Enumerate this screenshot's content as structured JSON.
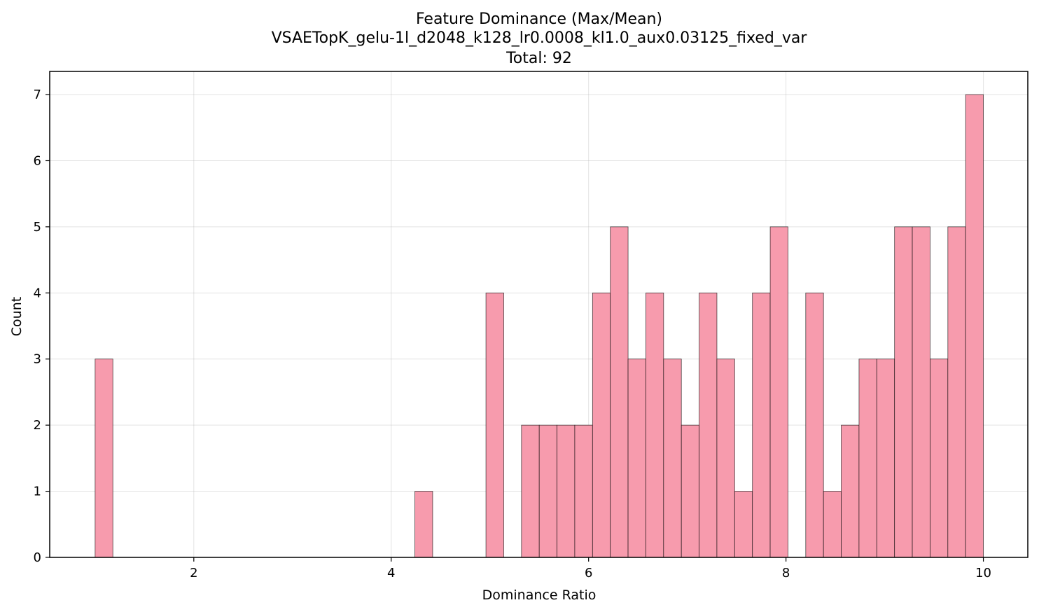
{
  "chart_data": {
    "type": "bar",
    "title_lines": [
      "Feature Dominance (Max/Mean)",
      "VSAETopK_gelu-1l_d2048_k128_lr0.0008_kl1.0_aux0.03125_fixed_var",
      "Total: 92"
    ],
    "xlabel": "Dominance Ratio",
    "ylabel": "Count",
    "xlim": [
      0.54,
      10.45
    ],
    "ylim": [
      0,
      7.35
    ],
    "xticks": [
      2,
      4,
      6,
      8,
      10
    ],
    "xtick_labels": [
      "2",
      "4",
      "6",
      "8",
      "10"
    ],
    "yticks": [
      0,
      1,
      2,
      3,
      4,
      5,
      6,
      7
    ],
    "ytick_labels": [
      "0",
      "1",
      "2",
      "3",
      "4",
      "5",
      "6",
      "7"
    ],
    "grid": true,
    "bar_color": "#f79bad",
    "bar_edge_color": "#000000",
    "bin_start": 1.0,
    "bin_width": 0.18,
    "counts": [
      3,
      0,
      0,
      0,
      0,
      0,
      0,
      0,
      0,
      0,
      0,
      0,
      0,
      0,
      0,
      0,
      0,
      0,
      1,
      0,
      0,
      0,
      4,
      0,
      2,
      2,
      2,
      2,
      4,
      5,
      3,
      4,
      3,
      2,
      4,
      3,
      1,
      4,
      5,
      0,
      4,
      1,
      2,
      3,
      3,
      5,
      5,
      3,
      5,
      7
    ]
  }
}
